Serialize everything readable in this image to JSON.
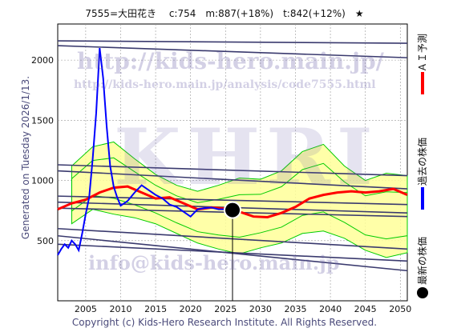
{
  "header": {
    "title": "7555=大田花き　 c:754　m:887(+18%)　t:842(+12%)　★"
  },
  "side": {
    "generated": "Generated on Tuesday 2026/1/13."
  },
  "footer": {
    "copyright": "Copyright (c) Kids-Hero Research Institute. All Rights Reserved."
  },
  "watermarks": {
    "url_main": "http://kids-hero.main.jp/",
    "url_analysis": "http://kids-hero.main.jp/analysis/code7555.html",
    "brand": "KHRI",
    "email": "info@kids-hero.main.jp"
  },
  "legend": {
    "ai_forecast": "ＡＩ予測",
    "past_price": "過去の株価",
    "latest_price": "最新の株価"
  },
  "colors": {
    "ai_forecast": "#ff0000",
    "past_price": "#0000ff",
    "latest_price": "#000000",
    "band_outer": "#ffff99",
    "band_inner": "#00cc00",
    "trend_lines": "#3a3a6e"
  },
  "chart_data": {
    "type": "line",
    "xlim": [
      2001,
      2051
    ],
    "ylim": [
      0,
      2300
    ],
    "x_ticks": [
      2005,
      2010,
      2015,
      2020,
      2025,
      2030,
      2035,
      2040,
      2045,
      2050
    ],
    "y_ticks": [
      500,
      1000,
      1500,
      2000
    ],
    "grid": true,
    "current": {
      "x": 2026.0,
      "y": 754
    },
    "past_price": [
      [
        2001.0,
        380
      ],
      [
        2001.5,
        430
      ],
      [
        2002.0,
        470
      ],
      [
        2002.5,
        440
      ],
      [
        2003.0,
        500
      ],
      [
        2003.5,
        470
      ],
      [
        2004.0,
        420
      ],
      [
        2004.5,
        560
      ],
      [
        2005.0,
        720
      ],
      [
        2005.5,
        860
      ],
      [
        2006.0,
        1180
      ],
      [
        2006.5,
        1560
      ],
      [
        2007.0,
        2100
      ],
      [
        2007.5,
        1850
      ],
      [
        2008.0,
        1450
      ],
      [
        2008.5,
        1120
      ],
      [
        2009.0,
        950
      ],
      [
        2009.5,
        860
      ],
      [
        2010.0,
        790
      ],
      [
        2011.0,
        830
      ],
      [
        2012.0,
        900
      ],
      [
        2013.0,
        960
      ],
      [
        2014.0,
        920
      ],
      [
        2015.0,
        880
      ],
      [
        2016.0,
        850
      ],
      [
        2017.0,
        800
      ],
      [
        2018.0,
        780
      ],
      [
        2019.0,
        740
      ],
      [
        2020.0,
        700
      ],
      [
        2021.0,
        760
      ],
      [
        2022.0,
        770
      ],
      [
        2023.0,
        775
      ],
      [
        2024.0,
        760
      ],
      [
        2025.0,
        760
      ],
      [
        2026.0,
        754
      ]
    ],
    "ai_forecast": [
      [
        2001,
        760
      ],
      [
        2003,
        810
      ],
      [
        2005,
        840
      ],
      [
        2007,
        900
      ],
      [
        2009,
        940
      ],
      [
        2011,
        950
      ],
      [
        2013,
        900
      ],
      [
        2015,
        850
      ],
      [
        2017,
        860
      ],
      [
        2019,
        810
      ],
      [
        2021,
        760
      ],
      [
        2023,
        775
      ],
      [
        2025,
        765
      ],
      [
        2027,
        740
      ],
      [
        2029,
        700
      ],
      [
        2031,
        695
      ],
      [
        2033,
        730
      ],
      [
        2035,
        780
      ],
      [
        2037,
        850
      ],
      [
        2039,
        880
      ],
      [
        2041,
        900
      ],
      [
        2043,
        910
      ],
      [
        2045,
        900
      ],
      [
        2047,
        910
      ],
      [
        2049,
        930
      ],
      [
        2051,
        880
      ]
    ],
    "band": [
      [
        2003,
        640,
        1120
      ],
      [
        2006,
        760,
        1280
      ],
      [
        2009,
        720,
        1320
      ],
      [
        2012,
        690,
        1180
      ],
      [
        2015,
        640,
        1050
      ],
      [
        2018,
        560,
        960
      ],
      [
        2021,
        480,
        910
      ],
      [
        2024,
        430,
        960
      ],
      [
        2027,
        390,
        1020
      ],
      [
        2030,
        440,
        1010
      ],
      [
        2033,
        480,
        1080
      ],
      [
        2036,
        560,
        1240
      ],
      [
        2039,
        580,
        1300
      ],
      [
        2042,
        520,
        1120
      ],
      [
        2045,
        420,
        1000
      ],
      [
        2048,
        360,
        1060
      ],
      [
        2051,
        400,
        1040
      ]
    ],
    "trend_lines": [
      [
        [
          2001,
          2160
        ],
        [
          2051,
          2140
        ]
      ],
      [
        [
          2001,
          2120
        ],
        [
          2051,
          2020
        ]
      ],
      [
        [
          2001,
          1130
        ],
        [
          2051,
          1040
        ]
      ],
      [
        [
          2001,
          1080
        ],
        [
          2051,
          930
        ]
      ],
      [
        [
          2001,
          870
        ],
        [
          2051,
          800
        ]
      ],
      [
        [
          2001,
          820
        ],
        [
          2051,
          730
        ]
      ],
      [
        [
          2001,
          770
        ],
        [
          2051,
          700
        ]
      ],
      [
        [
          2001,
          600
        ],
        [
          2051,
          430
        ]
      ],
      [
        [
          2001,
          540
        ],
        [
          2051,
          250
        ]
      ],
      [
        [
          2001,
          470
        ],
        [
          2051,
          330
        ]
      ]
    ]
  }
}
